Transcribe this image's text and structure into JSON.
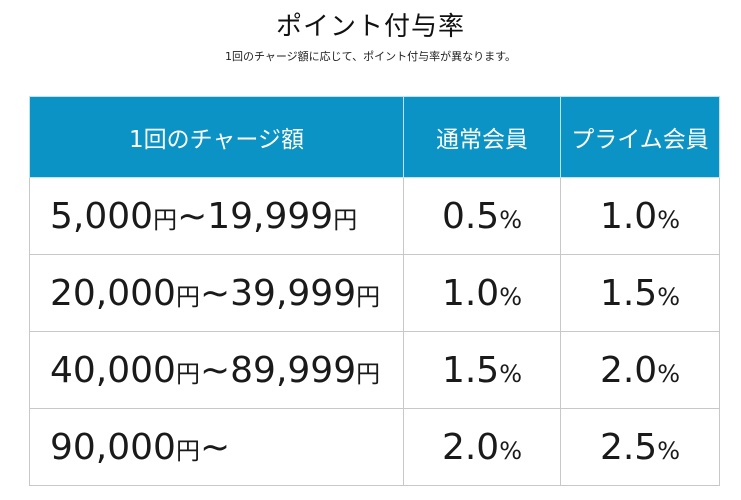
{
  "title": "ポイント付与率",
  "subtitle": "1回のチャージ額に応じて、ポイント付与率が異なります。",
  "table": {
    "headers": [
      "1回のチャージ額",
      "通常会員",
      "プライム会員"
    ],
    "rows": [
      {
        "min": "5,000",
        "min_unit": "円",
        "sep": "~",
        "max": "19,999",
        "max_unit": "円",
        "regular": "0.5",
        "regular_unit": "%",
        "prime": "1.0",
        "prime_unit": "%"
      },
      {
        "min": "20,000",
        "min_unit": "円",
        "sep": "~",
        "max": "39,999",
        "max_unit": "円",
        "regular": "1.0",
        "regular_unit": "%",
        "prime": "1.5",
        "prime_unit": "%"
      },
      {
        "min": "40,000",
        "min_unit": "円",
        "sep": "~",
        "max": "89,999",
        "max_unit": "円",
        "regular": "1.5",
        "regular_unit": "%",
        "prime": "2.0",
        "prime_unit": "%"
      },
      {
        "min": "90,000",
        "min_unit": "円",
        "sep": "~",
        "max": "",
        "max_unit": "",
        "regular": "2.0",
        "regular_unit": "%",
        "prime": "2.5",
        "prime_unit": "%"
      }
    ]
  },
  "colors": {
    "header_background": "#0a93c4",
    "header_text": "#ffffff",
    "border": "#c8c8c8"
  }
}
